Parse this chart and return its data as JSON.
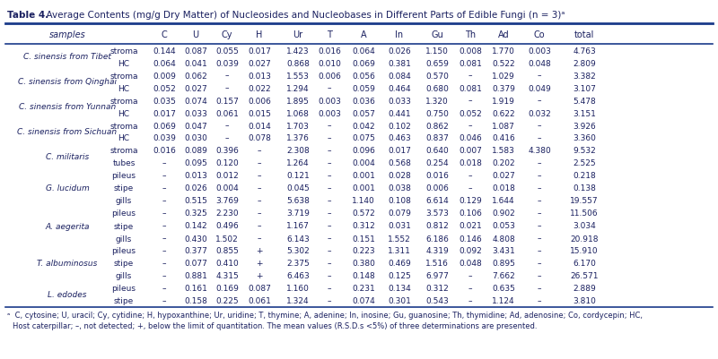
{
  "title_bold": "Table 4.",
  "title_normal": "  Average Contents (mg/g Dry Matter) of Nucleosides and Nucleobases in Different Parts of Edible Fungi (",
  "title_italic_n": "n",
  "title_end": " = 3)ᵃ",
  "bg_color": "#ffffff",
  "title_color": "#1a3a8a",
  "header_line_color": "#1a3a8a",
  "text_color": "#1a2060",
  "col_headers": [
    "samples",
    "",
    "C",
    "U",
    "Cy",
    "H",
    "Ur",
    "T",
    "A",
    "In",
    "Gu",
    "Th",
    "Ad",
    "Co",
    "total"
  ],
  "rows": [
    [
      "C. sinensis from Tibet",
      "stroma",
      "0.144",
      "0.087",
      "0.055",
      "0.017",
      "1.423",
      "0.016",
      "0.064",
      "0.026",
      "1.150",
      "0.008",
      "1.770",
      "0.003",
      "4.763"
    ],
    [
      "",
      "HC",
      "0.064",
      "0.041",
      "0.039",
      "0.027",
      "0.868",
      "0.010",
      "0.069",
      "0.381",
      "0.659",
      "0.081",
      "0.522",
      "0.048",
      "2.809"
    ],
    [
      "C. sinensis from Qinghai",
      "stroma",
      "0.009",
      "0.062",
      "–",
      "0.013",
      "1.553",
      "0.006",
      "0.056",
      "0.084",
      "0.570",
      "–",
      "1.029",
      "–",
      "3.382"
    ],
    [
      "",
      "HC",
      "0.052",
      "0.027",
      "–",
      "0.022",
      "1.294",
      "–",
      "0.059",
      "0.464",
      "0.680",
      "0.081",
      "0.379",
      "0.049",
      "3.107"
    ],
    [
      "C. sinensis from Yunnan",
      "stroma",
      "0.035",
      "0.074",
      "0.157",
      "0.006",
      "1.895",
      "0.003",
      "0.036",
      "0.033",
      "1.320",
      "–",
      "1.919",
      "–",
      "5.478"
    ],
    [
      "",
      "HC",
      "0.017",
      "0.033",
      "0.061",
      "0.015",
      "1.068",
      "0.003",
      "0.057",
      "0.441",
      "0.750",
      "0.052",
      "0.622",
      "0.032",
      "3.151"
    ],
    [
      "C. sinensis from Sichuan",
      "stroma",
      "0.069",
      "0.047",
      "–",
      "0.014",
      "1.703",
      "–",
      "0.042",
      "0.102",
      "0.862",
      "–",
      "1.087",
      "–",
      "3.926"
    ],
    [
      "",
      "HC",
      "0.039",
      "0.030",
      "–",
      "0.078",
      "1.376",
      "–",
      "0.075",
      "0.463",
      "0.837",
      "0.046",
      "0.416",
      "–",
      "3.360"
    ],
    [
      "C. militaris",
      "stroma",
      "0.016",
      "0.089",
      "0.396",
      "–",
      "2.308",
      "–",
      "0.096",
      "0.017",
      "0.640",
      "0.007",
      "1.583",
      "4.380",
      "9.532"
    ],
    [
      "",
      "tubes",
      "–",
      "0.095",
      "0.120",
      "–",
      "1.264",
      "–",
      "0.004",
      "0.568",
      "0.254",
      "0.018",
      "0.202",
      "–",
      "2.525"
    ],
    [
      "G. lucidum",
      "pileus",
      "–",
      "0.013",
      "0.012",
      "–",
      "0.121",
      "–",
      "0.001",
      "0.028",
      "0.016",
      "–",
      "0.027",
      "–",
      "0.218"
    ],
    [
      "",
      "stipe",
      "–",
      "0.026",
      "0.004",
      "–",
      "0.045",
      "–",
      "0.001",
      "0.038",
      "0.006",
      "–",
      "0.018",
      "–",
      "0.138"
    ],
    [
      "",
      "gills",
      "–",
      "0.515",
      "3.769",
      "–",
      "5.638",
      "–",
      "1.140",
      "0.108",
      "6.614",
      "0.129",
      "1.644",
      "–",
      "19.557"
    ],
    [
      "A. aegerita",
      "pileus",
      "–",
      "0.325",
      "2.230",
      "–",
      "3.719",
      "–",
      "0.572",
      "0.079",
      "3.573",
      "0.106",
      "0.902",
      "–",
      "11.506"
    ],
    [
      "",
      "stipe",
      "–",
      "0.142",
      "0.496",
      "–",
      "1.167",
      "–",
      "0.312",
      "0.031",
      "0.812",
      "0.021",
      "0.053",
      "–",
      "3.034"
    ],
    [
      "",
      "gills",
      "–",
      "0.430",
      "1.502",
      "–",
      "6.143",
      "–",
      "0.151",
      "1.552",
      "6.186",
      "0.146",
      "4.808",
      "–",
      "20.918"
    ],
    [
      "T. albuminosus",
      "pileus",
      "–",
      "0.377",
      "0.855",
      "+",
      "5.302",
      "–",
      "0.223",
      "1.311",
      "4.319",
      "0.092",
      "3.431",
      "–",
      "15.910"
    ],
    [
      "",
      "stipe",
      "–",
      "0.077",
      "0.410",
      "+",
      "2.375",
      "–",
      "0.380",
      "0.469",
      "1.516",
      "0.048",
      "0.895",
      "–",
      "6.170"
    ],
    [
      "",
      "gills",
      "–",
      "0.881",
      "4.315",
      "+",
      "6.463",
      "–",
      "0.148",
      "0.125",
      "6.977",
      "–",
      "7.662",
      "–",
      "26.571"
    ],
    [
      "L. edodes",
      "pileus",
      "–",
      "0.161",
      "0.169",
      "0.087",
      "1.160",
      "–",
      "0.231",
      "0.134",
      "0.312",
      "–",
      "0.635",
      "–",
      "2.889"
    ],
    [
      "",
      "stipe",
      "–",
      "0.158",
      "0.225",
      "0.061",
      "1.324",
      "–",
      "0.074",
      "0.301",
      "0.543",
      "–",
      "1.124",
      "–",
      "3.810"
    ]
  ],
  "footnote_super": "ᵃ",
  "footnote_text": " C, cytosine; U, uracil; Cy, cytidine; H, hypoxanthine; Ur, uridine; T, thymine; A, adenine; In, inosine; Gu, guanosine; Th, thymidine; Ad, adenosine; Co, cordycepin; HC,\nHost caterpillar; –, not detected; +, below the limit of quantitation. The mean values (R.S.D.s <5%) of three determinations are presented."
}
